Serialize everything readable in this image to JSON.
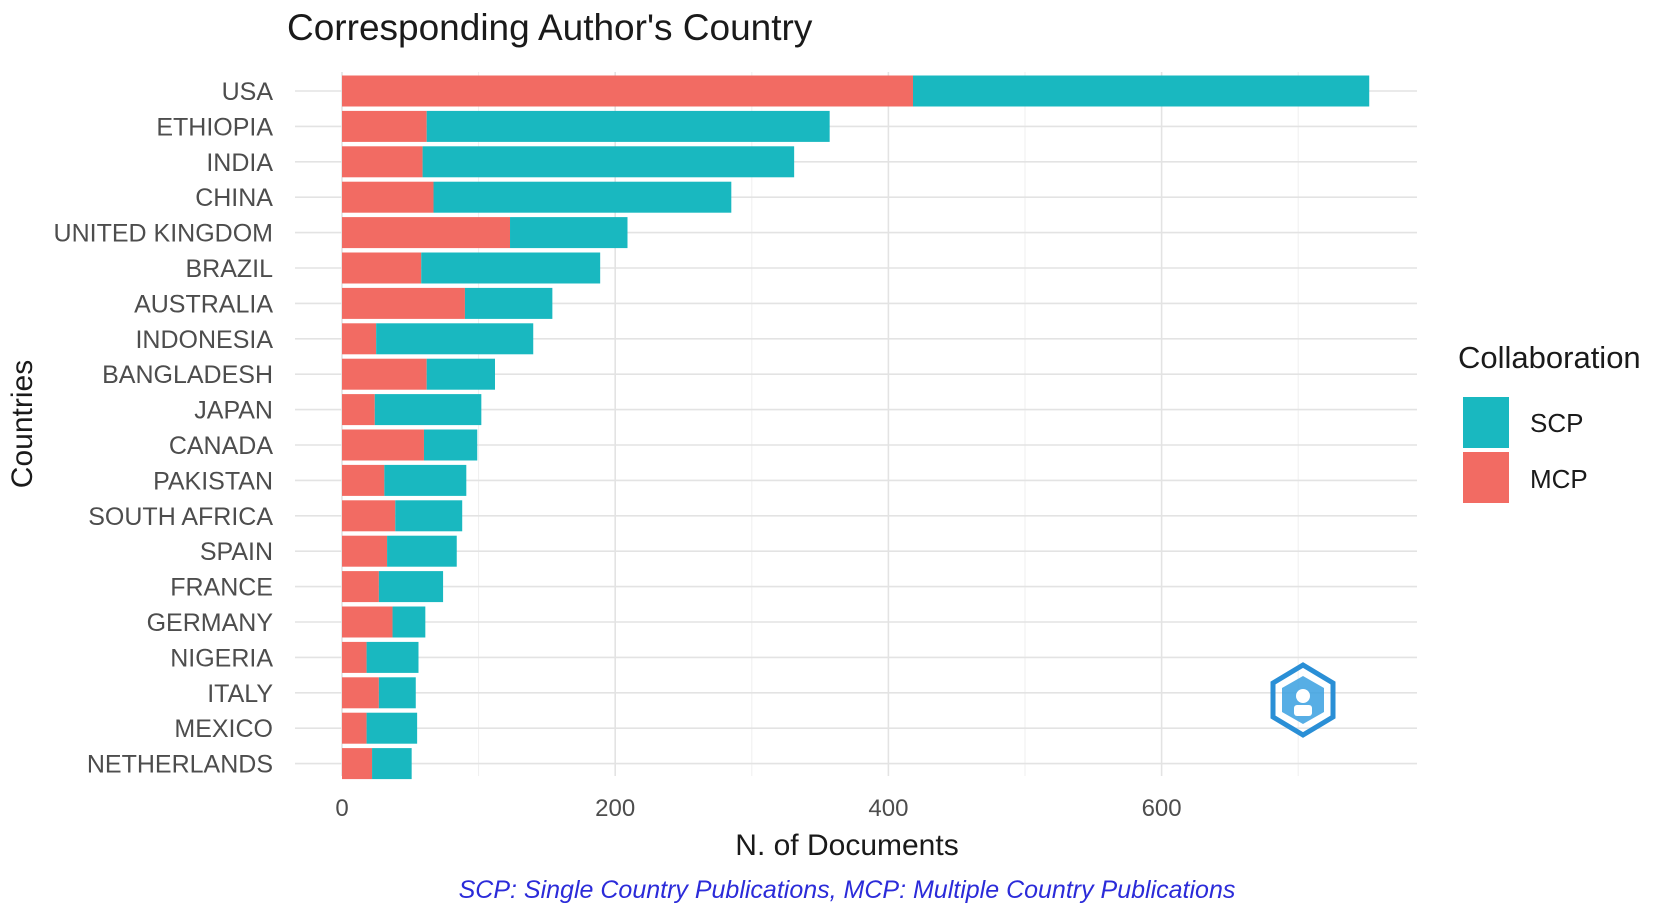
{
  "chart_data": {
    "type": "bar",
    "orientation": "horizontal",
    "stacked": true,
    "title": "Corresponding Author's Country",
    "xlabel": "N. of Documents",
    "ylabel": "Countries",
    "caption": "SCP: Single Country Publications, MCP: Multiple Country Publications",
    "xlim": [
      0,
      790
    ],
    "xticks": [
      0,
      200,
      400,
      600
    ],
    "grid": true,
    "legend": {
      "title": "Collaboration",
      "position": "right",
      "entries": [
        {
          "label": "SCP",
          "color": "#19b8c0"
        },
        {
          "label": "MCP",
          "color": "#f26b63"
        }
      ]
    },
    "categories": [
      "USA",
      "ETHIOPIA",
      "INDIA",
      "CHINA",
      "UNITED KINGDOM",
      "BRAZIL",
      "AUSTRALIA",
      "INDONESIA",
      "BANGLADESH",
      "JAPAN",
      "CANADA",
      "PAKISTAN",
      "SOUTH AFRICA",
      "SPAIN",
      "FRANCE",
      "GERMANY",
      "NIGERIA",
      "ITALY",
      "MEXICO",
      "NETHERLANDS"
    ],
    "series": [
      {
        "name": "MCP",
        "color": "#f26b63",
        "values": [
          418,
          62,
          59,
          67,
          123,
          58,
          90,
          25,
          62,
          24,
          60,
          31,
          39,
          33,
          27,
          37,
          18,
          27,
          18,
          22
        ]
      },
      {
        "name": "SCP",
        "color": "#19b8c0",
        "values": [
          334,
          295,
          272,
          218,
          86,
          131,
          64,
          115,
          50,
          78,
          39,
          60,
          49,
          51,
          47,
          24,
          38,
          27,
          37,
          29
        ]
      }
    ]
  },
  "logo": {
    "name": "publisher-hexagon-logo",
    "color": "#2a8fd6"
  }
}
